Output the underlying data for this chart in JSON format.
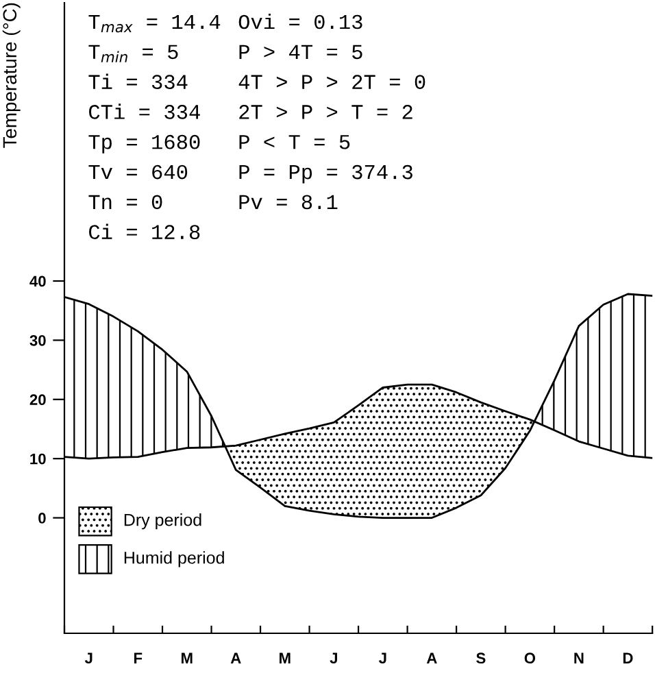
{
  "chart_data": {
    "type": "line",
    "ylabel": "Temperature (°C)",
    "categories": [
      null,
      "J",
      null,
      "F",
      null,
      "M",
      null,
      "A",
      null,
      "M",
      null,
      "J",
      null,
      "J",
      null,
      "A",
      null,
      "S",
      null,
      "O",
      null,
      "N",
      null,
      "D",
      null
    ],
    "series": [
      {
        "color": "#000000",
        "values": [
          10.3,
          10.0,
          10.2,
          10.3,
          11.1,
          11.8,
          11.9,
          12.2,
          13.2,
          14.2,
          15.1,
          16.1,
          19.0,
          22.0,
          22.5,
          22.5,
          21.2,
          19.5,
          18.0,
          16.6,
          14.8,
          12.9,
          11.7,
          10.5,
          10.1
        ]
      },
      {
        "color": "#000000",
        "values": [
          37.3,
          36.1,
          34.0,
          31.5,
          28.4,
          24.7,
          17.2,
          8.1,
          5.1,
          2.0,
          1.2,
          0.6,
          0.2,
          0,
          0,
          0,
          1.7,
          3.8,
          8.4,
          14.7,
          23.2,
          32.4,
          36.0,
          37.8,
          37.5
        ]
      }
    ],
    "ylim": [
      -19.5,
      87
    ],
    "yticks": [
      0,
      10,
      20,
      30,
      40
    ],
    "grid": false,
    "marker": "none",
    "line_style": "solid",
    "annotations": [
      "T$_{max}$ = 14.4",
      "Ovi = 0.13",
      "T$_{min}$ = 5",
      "P > 4T = 5",
      "Ti = 334",
      "4T > P > 2T = 0",
      "CTi = 334",
      "2T > P > T = 2",
      "Tp = 1680",
      "P < T = 5",
      "Tv = 640",
      "P = Pp = 374.3",
      "Tn = 0",
      "Pv = 8.1",
      "Ci = 12.8",
      "Dry period",
      "Humid period"
    ]
  }
}
